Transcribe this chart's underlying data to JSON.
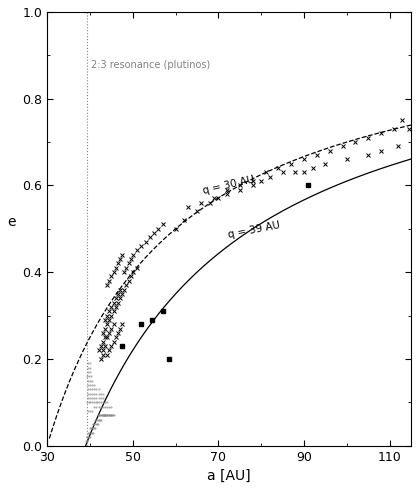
{
  "xlim": [
    30,
    115
  ],
  "ylim": [
    0,
    1
  ],
  "xlabel": "a [AU]",
  "ylabel": "e",
  "resonance_line_x": 39.4,
  "resonance_label": "2:3 resonance (plutinos)",
  "q30": 30,
  "q39": 39,
  "q30_label": "q = 30 AU",
  "q39_label": "q = 39 AU",
  "xticks": [
    30,
    50,
    70,
    90,
    110
  ],
  "yticks": [
    0,
    0.2,
    0.4,
    0.6,
    0.8,
    1
  ],
  "crosses": [
    [
      44.0,
      0.21
    ],
    [
      44.5,
      0.22
    ],
    [
      45.0,
      0.23
    ],
    [
      45.5,
      0.24
    ],
    [
      44.0,
      0.25
    ],
    [
      44.5,
      0.26
    ],
    [
      45.0,
      0.27
    ],
    [
      45.5,
      0.28
    ],
    [
      46.0,
      0.25
    ],
    [
      46.5,
      0.26
    ],
    [
      47.0,
      0.27
    ],
    [
      47.5,
      0.28
    ],
    [
      43.5,
      0.29
    ],
    [
      44.0,
      0.3
    ],
    [
      44.5,
      0.31
    ],
    [
      45.0,
      0.32
    ],
    [
      45.5,
      0.33
    ],
    [
      46.0,
      0.34
    ],
    [
      46.5,
      0.35
    ],
    [
      47.0,
      0.36
    ],
    [
      43.0,
      0.22
    ],
    [
      43.5,
      0.23
    ],
    [
      43.0,
      0.24
    ],
    [
      43.5,
      0.25
    ],
    [
      44.0,
      0.37
    ],
    [
      44.5,
      0.38
    ],
    [
      45.0,
      0.39
    ],
    [
      45.5,
      0.4
    ],
    [
      46.0,
      0.41
    ],
    [
      46.5,
      0.42
    ],
    [
      47.0,
      0.43
    ],
    [
      47.5,
      0.44
    ],
    [
      48.0,
      0.4
    ],
    [
      48.5,
      0.41
    ],
    [
      49.0,
      0.42
    ],
    [
      49.5,
      0.43
    ],
    [
      50.0,
      0.44
    ],
    [
      51.0,
      0.45
    ],
    [
      52.0,
      0.46
    ],
    [
      53.0,
      0.47
    ],
    [
      54.0,
      0.48
    ],
    [
      55.0,
      0.49
    ],
    [
      56.0,
      0.5
    ],
    [
      57.0,
      0.51
    ],
    [
      42.5,
      0.2
    ],
    [
      43.0,
      0.21
    ],
    [
      42.0,
      0.22
    ],
    [
      42.5,
      0.23
    ],
    [
      43.0,
      0.26
    ],
    [
      43.5,
      0.27
    ],
    [
      44.0,
      0.28
    ],
    [
      44.5,
      0.29
    ],
    [
      45.0,
      0.3
    ],
    [
      45.5,
      0.31
    ],
    [
      46.0,
      0.32
    ],
    [
      46.5,
      0.33
    ],
    [
      47.0,
      0.34
    ],
    [
      47.5,
      0.35
    ],
    [
      48.0,
      0.36
    ],
    [
      48.5,
      0.37
    ],
    [
      49.0,
      0.38
    ],
    [
      49.5,
      0.39
    ],
    [
      50.0,
      0.4
    ],
    [
      51.0,
      0.41
    ],
    [
      60.0,
      0.5
    ],
    [
      62.0,
      0.52
    ],
    [
      65.0,
      0.54
    ],
    [
      68.0,
      0.56
    ],
    [
      70.0,
      0.57
    ],
    [
      72.0,
      0.58
    ],
    [
      75.0,
      0.59
    ],
    [
      78.0,
      0.6
    ],
    [
      80.0,
      0.61
    ],
    [
      82.0,
      0.62
    ],
    [
      85.0,
      0.63
    ],
    [
      88.0,
      0.63
    ],
    [
      90.0,
      0.63
    ],
    [
      92.0,
      0.64
    ],
    [
      95.0,
      0.65
    ],
    [
      100.0,
      0.66
    ],
    [
      105.0,
      0.67
    ],
    [
      108.0,
      0.68
    ],
    [
      112.0,
      0.69
    ],
    [
      114.5,
      0.73
    ],
    [
      63.0,
      0.55
    ],
    [
      66.0,
      0.56
    ],
    [
      69.0,
      0.57
    ],
    [
      72.0,
      0.59
    ],
    [
      75.0,
      0.6
    ],
    [
      78.0,
      0.61
    ],
    [
      81.0,
      0.63
    ],
    [
      84.0,
      0.64
    ],
    [
      87.0,
      0.65
    ],
    [
      90.0,
      0.66
    ],
    [
      93.0,
      0.67
    ],
    [
      96.0,
      0.68
    ],
    [
      99.0,
      0.69
    ],
    [
      102.0,
      0.7
    ],
    [
      105.0,
      0.71
    ],
    [
      108.0,
      0.72
    ],
    [
      111.0,
      0.73
    ],
    [
      113.0,
      0.75
    ]
  ],
  "squares": [
    [
      47.5,
      0.23
    ],
    [
      52.0,
      0.28
    ],
    [
      54.5,
      0.29
    ],
    [
      57.0,
      0.31
    ],
    [
      58.5,
      0.2
    ],
    [
      91.0,
      0.6
    ]
  ],
  "tiny_dots": [
    [
      39.2,
      0.01
    ],
    [
      39.4,
      0.01
    ],
    [
      39.6,
      0.02
    ],
    [
      39.8,
      0.02
    ],
    [
      40.0,
      0.02
    ],
    [
      40.2,
      0.03
    ],
    [
      40.4,
      0.03
    ],
    [
      40.6,
      0.03
    ],
    [
      40.8,
      0.04
    ],
    [
      41.0,
      0.04
    ],
    [
      41.2,
      0.04
    ],
    [
      41.4,
      0.05
    ],
    [
      41.6,
      0.05
    ],
    [
      41.8,
      0.05
    ],
    [
      42.0,
      0.06
    ],
    [
      42.2,
      0.06
    ],
    [
      42.4,
      0.06
    ],
    [
      42.6,
      0.06
    ],
    [
      42.8,
      0.07
    ],
    [
      43.0,
      0.07
    ],
    [
      43.2,
      0.07
    ],
    [
      43.4,
      0.07
    ],
    [
      43.6,
      0.07
    ],
    [
      43.8,
      0.07
    ],
    [
      44.0,
      0.07
    ],
    [
      44.2,
      0.07
    ],
    [
      44.4,
      0.07
    ],
    [
      44.6,
      0.07
    ],
    [
      44.8,
      0.07
    ],
    [
      45.0,
      0.07
    ],
    [
      45.2,
      0.07
    ],
    [
      45.4,
      0.07
    ],
    [
      39.0,
      0.01
    ],
    [
      39.2,
      0.02
    ],
    [
      39.4,
      0.02
    ],
    [
      39.6,
      0.03
    ],
    [
      39.8,
      0.03
    ],
    [
      40.0,
      0.04
    ],
    [
      40.2,
      0.04
    ],
    [
      40.4,
      0.04
    ],
    [
      40.6,
      0.05
    ],
    [
      40.8,
      0.05
    ],
    [
      41.0,
      0.05
    ],
    [
      41.2,
      0.06
    ],
    [
      41.4,
      0.06
    ],
    [
      41.6,
      0.06
    ],
    [
      41.8,
      0.07
    ],
    [
      42.0,
      0.07
    ],
    [
      42.2,
      0.07
    ],
    [
      42.4,
      0.07
    ],
    [
      42.6,
      0.07
    ],
    [
      42.8,
      0.07
    ],
    [
      43.0,
      0.07
    ],
    [
      43.2,
      0.07
    ],
    [
      43.4,
      0.07
    ],
    [
      43.6,
      0.07
    ],
    [
      44.0,
      0.07
    ],
    [
      44.5,
      0.07
    ],
    [
      45.0,
      0.07
    ],
    [
      45.5,
      0.07
    ],
    [
      39.5,
      0.08
    ],
    [
      40.0,
      0.08
    ],
    [
      40.5,
      0.08
    ],
    [
      41.0,
      0.09
    ],
    [
      41.5,
      0.09
    ],
    [
      42.0,
      0.09
    ],
    [
      42.5,
      0.09
    ],
    [
      43.0,
      0.09
    ],
    [
      43.5,
      0.09
    ],
    [
      44.0,
      0.09
    ],
    [
      44.5,
      0.09
    ],
    [
      45.0,
      0.09
    ],
    [
      39.3,
      0.1
    ],
    [
      39.7,
      0.1
    ],
    [
      40.1,
      0.1
    ],
    [
      40.5,
      0.1
    ],
    [
      40.9,
      0.1
    ],
    [
      41.3,
      0.1
    ],
    [
      41.7,
      0.1
    ],
    [
      42.1,
      0.1
    ],
    [
      42.5,
      0.1
    ],
    [
      43.0,
      0.1
    ],
    [
      43.5,
      0.1
    ],
    [
      44.0,
      0.1
    ],
    [
      39.5,
      0.11
    ],
    [
      40.0,
      0.11
    ],
    [
      40.5,
      0.11
    ],
    [
      41.0,
      0.11
    ],
    [
      41.5,
      0.11
    ],
    [
      42.0,
      0.11
    ],
    [
      42.5,
      0.11
    ],
    [
      43.0,
      0.11
    ],
    [
      39.5,
      0.12
    ],
    [
      40.0,
      0.12
    ],
    [
      40.5,
      0.12
    ],
    [
      41.0,
      0.12
    ],
    [
      41.5,
      0.12
    ],
    [
      42.0,
      0.12
    ],
    [
      42.5,
      0.12
    ],
    [
      43.0,
      0.12
    ],
    [
      39.5,
      0.13
    ],
    [
      40.0,
      0.13
    ],
    [
      40.5,
      0.13
    ],
    [
      41.0,
      0.13
    ],
    [
      41.5,
      0.13
    ],
    [
      42.0,
      0.13
    ],
    [
      39.5,
      0.14
    ],
    [
      40.0,
      0.14
    ],
    [
      40.5,
      0.14
    ],
    [
      41.0,
      0.14
    ],
    [
      39.5,
      0.15
    ],
    [
      40.0,
      0.15
    ],
    [
      40.5,
      0.15
    ],
    [
      39.3,
      0.16
    ],
    [
      39.8,
      0.16
    ],
    [
      40.3,
      0.16
    ],
    [
      39.5,
      0.17
    ],
    [
      40.0,
      0.17
    ],
    [
      39.5,
      0.18
    ],
    [
      40.0,
      0.18
    ],
    [
      39.5,
      0.19
    ],
    [
      40.0,
      0.19
    ]
  ]
}
